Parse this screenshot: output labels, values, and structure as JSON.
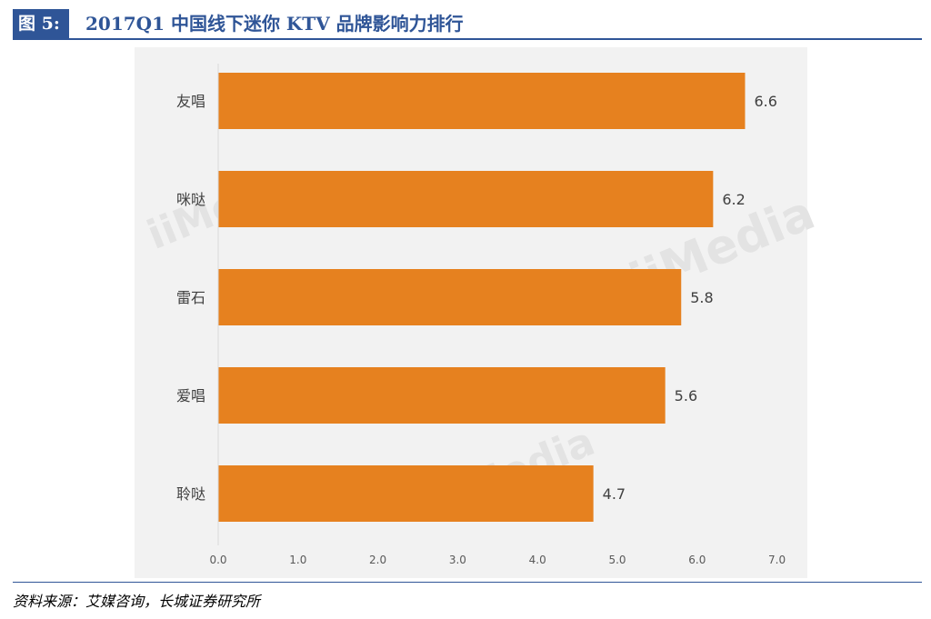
{
  "header": {
    "figure_label": "图 5:",
    "title": "2017Q1 中国线下迷你 KTV 品牌影响力排行"
  },
  "watermarks": [
    "iiMedia",
    "iiMedia",
    "iiMedia"
  ],
  "colors": {
    "bar": "#e6811f",
    "panel": "#f2f2f2",
    "axis": "#d9d9d9",
    "accent": "#2f5597"
  },
  "chart_data": {
    "type": "bar",
    "orientation": "horizontal",
    "categories": [
      "友唱",
      "咪哒",
      "雷石",
      "爱唱",
      "聆哒"
    ],
    "values": [
      6.6,
      6.2,
      5.8,
      5.6,
      4.7
    ],
    "value_labels": [
      "6.6",
      "6.2",
      "5.8",
      "5.6",
      "4.7"
    ],
    "x_ticks": [
      "0.0",
      "1.0",
      "2.0",
      "3.0",
      "4.0",
      "5.0",
      "6.0",
      "7.0"
    ],
    "xlim": [
      0,
      7
    ],
    "title": "",
    "xlabel": "",
    "ylabel": "",
    "grid": false,
    "legend": "none"
  },
  "footer": {
    "source": "资料来源：艾媒咨询，长城证券研究所"
  }
}
